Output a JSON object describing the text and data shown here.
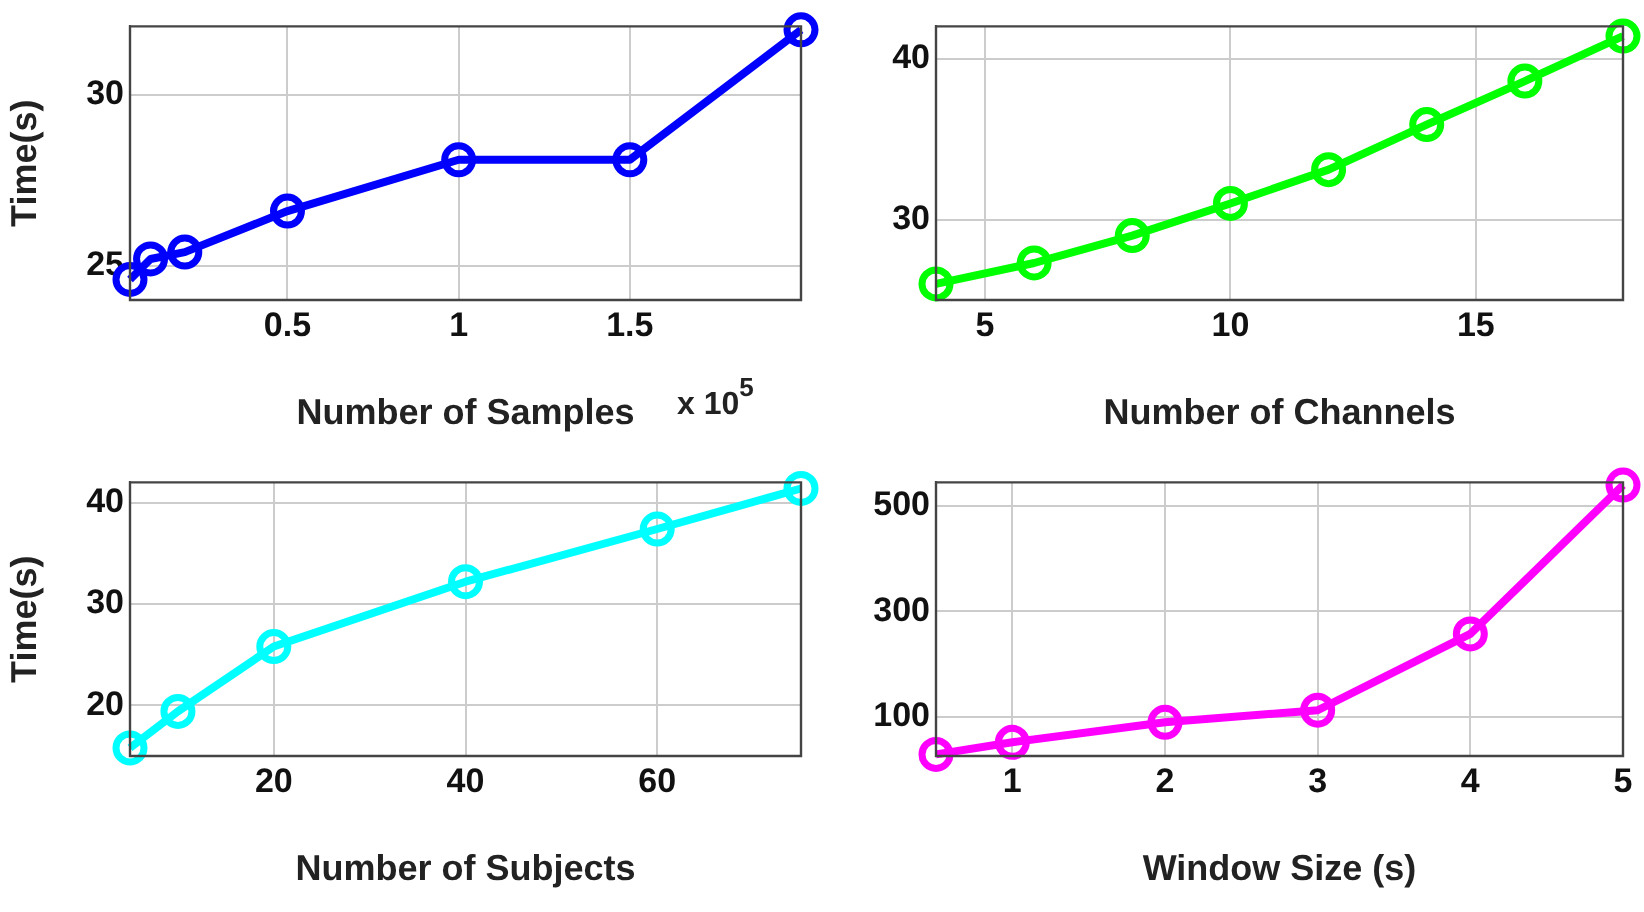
{
  "chart_data": [
    {
      "type": "line",
      "ylabel": "Time(s)",
      "xlabel": "Number of Samples",
      "annotations": [
        "x 10$^{5}$"
      ],
      "x": [
        0.04,
        0.1,
        0.2,
        0.5,
        1,
        1.5,
        2
      ],
      "series": [
        {
          "color": "#0000ff",
          "values": [
            24.6,
            25.2,
            25.4,
            26.6,
            28.1,
            28.1,
            31.9
          ]
        }
      ],
      "xlim": [
        0.04,
        2
      ],
      "xticks": [
        0.5,
        1,
        1.5
      ],
      "ylim": [
        24,
        32
      ],
      "yticks": [
        25,
        30
      ],
      "grid": true,
      "marker": "circle"
    },
    {
      "type": "line",
      "xlabel": "Number of Channels",
      "x": [
        4,
        6,
        8,
        10,
        12,
        14,
        16,
        18
      ],
      "series": [
        {
          "color": "#00ff00",
          "values": [
            26,
            27.3,
            29,
            31,
            33.1,
            35.9,
            38.6,
            41.4
          ]
        }
      ],
      "xlim": [
        4,
        18
      ],
      "xticks": [
        5,
        10,
        15
      ],
      "ylim": [
        25,
        42
      ],
      "yticks": [
        30,
        40
      ],
      "grid": true,
      "marker": "circle"
    },
    {
      "type": "line",
      "ylabel": "Time(s)",
      "xlabel": "Number of Subjects",
      "x": [
        5,
        10,
        20,
        40,
        60,
        75
      ],
      "series": [
        {
          "color": "#00ffff",
          "values": [
            15.8,
            19.4,
            25.8,
            32.2,
            37.4,
            41.4
          ]
        }
      ],
      "xlim": [
        5,
        75
      ],
      "xticks": [
        20,
        40,
        60
      ],
      "ylim": [
        15,
        42
      ],
      "yticks": [
        20,
        30,
        40
      ],
      "grid": true,
      "marker": "circle"
    },
    {
      "type": "line",
      "xlabel": "Window Size (s)",
      "x": [
        0.5,
        1,
        2,
        3,
        4,
        5
      ],
      "series": [
        {
          "color": "#ff00ff",
          "values": [
            28,
            51,
            89,
            112,
            257,
            540
          ]
        }
      ],
      "xlim": [
        0.5,
        5
      ],
      "xticks": [
        1,
        2,
        3,
        4,
        5
      ],
      "ylim": [
        25,
        545
      ],
      "yticks": [
        100,
        300,
        500
      ],
      "grid": true,
      "marker": "circle"
    }
  ]
}
